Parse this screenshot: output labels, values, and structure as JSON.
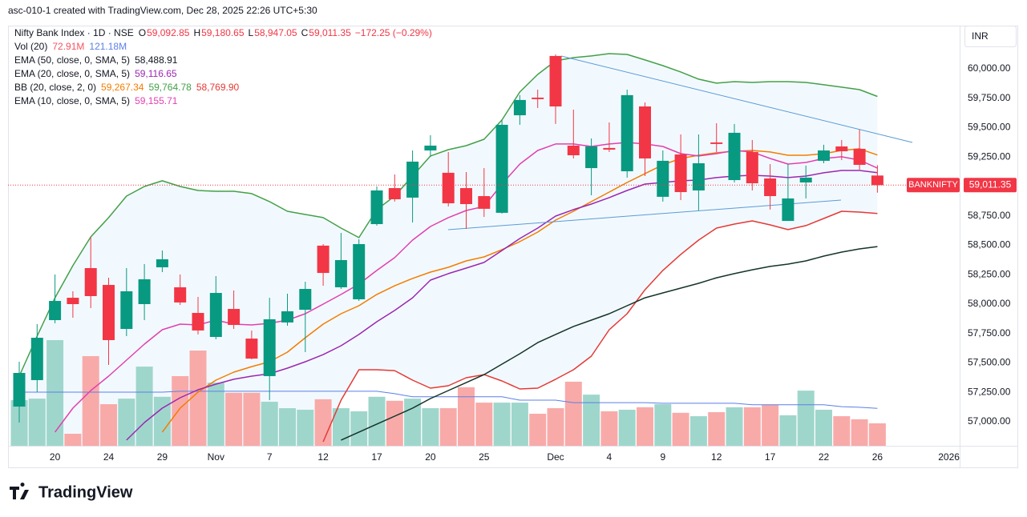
{
  "caption": "asc-010-1 created with TradingView.com, Dec 28, 2025 22:26 UTC+5:30",
  "currency": "INR",
  "brand": "TradingView",
  "chart_data": {
    "type": "candlestick",
    "title": "Nifty Bank Index · 1D · NSE",
    "ohlc_labels": [
      {
        "key": "O",
        "label": "59,092.85"
      },
      {
        "key": "H",
        "label": "59,180.65"
      },
      {
        "key": "L",
        "label": "58,947.05"
      },
      {
        "key": "C",
        "label": "59,011.35"
      }
    ],
    "change_label": "−172.25 (−0.29%)",
    "symbol_tag": "BANKNIFTY",
    "up_color": "#089981",
    "down_color": "#f23645",
    "categories": [
      null,
      null,
      "20",
      null,
      null,
      "24",
      null,
      null,
      "29",
      null,
      null,
      "Nov",
      null,
      null,
      "7",
      null,
      null,
      "12",
      null,
      null,
      "17",
      null,
      null,
      "20",
      null,
      null,
      "25",
      null,
      null,
      null,
      "Dec",
      null,
      null,
      "4",
      null,
      null,
      "9",
      null,
      null,
      "12",
      null,
      null,
      "17",
      null,
      null,
      "22",
      null,
      null,
      "26",
      null,
      null,
      null,
      "2026"
    ],
    "open": [
      57129,
      57354,
      57864,
      58054,
      58306,
      58163,
      57789,
      58000,
      58313,
      58143,
      57925,
      57721,
      57959,
      57707,
      57388,
      57844,
      57952,
      58497,
      58143,
      58041,
      58680,
      58986,
      58905,
      59306,
      59116,
      58986,
      58918,
      58776,
      59605,
      59755,
      60109,
      59347,
      59156,
      59327,
      59129,
      59680,
      58912,
      59272,
      58966,
      59374,
      59054,
      59293,
      59068,
      58707,
      59034,
      59218,
      59340,
      59320,
      59092.85,
      null,
      null,
      null,
      null
    ],
    "high": [
      57510,
      57830,
      58252,
      58109,
      58571,
      58224,
      58306,
      58340,
      58456,
      58252,
      58061,
      58238,
      58116,
      57776,
      58054,
      58088,
      58190,
      58510,
      58605,
      58551,
      59000,
      59102,
      59306,
      59435,
      59293,
      59122,
      59156,
      59565,
      59776,
      59823,
      60122,
      59653,
      59408,
      59544,
      59823,
      59714,
      59306,
      59442,
      59442,
      59537,
      59531,
      59395,
      59190,
      59190,
      59177,
      59354,
      59395,
      59483,
      59180.65,
      null,
      null,
      null,
      null
    ],
    "low": [
      56993,
      57252,
      57837,
      57884,
      57966,
      57483,
      57728,
      57864,
      58272,
      57993,
      57742,
      57701,
      57789,
      57531,
      57184,
      57816,
      57592,
      58156,
      58129,
      58027,
      58667,
      58871,
      58694,
      59252,
      58830,
      58639,
      58741,
      58769,
      59524,
      59667,
      59531,
      59238,
      58925,
      59293,
      59075,
      59088,
      58871,
      58884,
      58796,
      59293,
      59034,
      58966,
      58803,
      58707,
      58898,
      59197,
      59224,
      59143,
      58947.05,
      null,
      null,
      null,
      null
    ],
    "close": [
      57415,
      57714,
      58027,
      58000,
      58068,
      57694,
      58109,
      58211,
      58381,
      58014,
      57776,
      58095,
      57823,
      57537,
      57871,
      57939,
      58129,
      58265,
      58374,
      58510,
      58966,
      58891,
      59211,
      59347,
      58857,
      58850,
      58810,
      59524,
      59735,
      59742,
      59680,
      59265,
      59340,
      59313,
      59776,
      59238,
      59218,
      58952,
      59197,
      59361,
      59456,
      59027,
      58918,
      58898,
      59075,
      59306,
      59299,
      59183.6,
      59011.35,
      null,
      null,
      null,
      null
    ],
    "volume": {
      "name": "Vol (20)",
      "up_color": "#9fd6cc",
      "down_color": "#f8aaa9",
      "ma_color": "#5b7fe8",
      "legend_values": [
        "72.91M",
        "121.18M"
      ],
      "values": [
        148,
        153,
        343,
        39,
        291,
        135,
        153,
        257,
        159,
        226,
        309,
        205,
        172,
        172,
        143,
        122,
        117,
        151,
        122,
        112,
        159,
        146,
        153,
        122,
        122,
        190,
        140,
        140,
        140,
        104,
        122,
        208,
        166,
        112,
        117,
        125,
        135,
        107,
        96,
        109,
        125,
        125,
        133,
        99,
        179,
        117,
        96,
        86,
        72.91,
        null,
        null,
        null,
        null
      ],
      "ma_values": [
        174,
        174,
        174,
        174,
        174,
        174,
        174,
        174,
        174,
        177,
        177,
        177,
        177,
        177,
        177,
        177,
        177,
        177,
        177,
        177,
        177,
        169,
        159,
        159,
        159,
        159,
        159,
        159,
        148,
        148,
        148,
        140,
        140,
        140,
        140,
        140,
        138,
        138,
        138,
        138,
        138,
        133,
        133,
        133,
        133,
        133,
        127,
        125,
        121.18,
        null,
        null,
        null,
        null
      ]
    },
    "overlays": [
      {
        "name": "EMA (50, close, 0, SMA, 5)",
        "color": "#14332a",
        "legend_values": [
          "58,488.91"
        ],
        "values": [
          null,
          null,
          null,
          null,
          null,
          null,
          null,
          null,
          null,
          null,
          null,
          null,
          null,
          null,
          null,
          null,
          null,
          null,
          56844,
          56912,
          56980,
          57048,
          57116,
          57197,
          57265,
          57333,
          57401,
          57490,
          57578,
          57673,
          57742,
          57810,
          57864,
          57918,
          57986,
          58054,
          58095,
          58136,
          58177,
          58224,
          58259,
          58292,
          58320,
          58340,
          58367,
          58408,
          58442,
          58469,
          58488.91,
          null,
          null,
          null,
          null
        ]
      },
      {
        "name": "EMA (20, close, 0, SMA, 5)",
        "color": "#9c27b0",
        "legend_values": [
          "59,116.65"
        ],
        "values": [
          null,
          null,
          null,
          null,
          null,
          null,
          56844,
          56993,
          57116,
          57204,
          57272,
          57320,
          57361,
          57388,
          57408,
          57456,
          57510,
          57571,
          57646,
          57742,
          57850,
          57946,
          58054,
          58204,
          58259,
          58306,
          58354,
          58456,
          58558,
          58646,
          58748,
          58803,
          58850,
          58905,
          58966,
          59020,
          59034,
          59048,
          59054,
          59075,
          59088,
          59095,
          59088,
          59075,
          59088,
          59116,
          59136,
          59136,
          59116.65,
          null,
          null,
          null,
          null
        ]
      },
      {
        "name": "EMA (10, close, 0, SMA, 5)",
        "color": "#e33fae",
        "legend_values": [
          "59,155.71"
        ],
        "values": [
          null,
          null,
          56912,
          57116,
          57265,
          57388,
          57524,
          57660,
          57782,
          57830,
          57823,
          57864,
          57830,
          57823,
          57837,
          57864,
          57918,
          58000,
          58082,
          58170,
          58286,
          58395,
          58544,
          58660,
          58735,
          58796,
          58830,
          59020,
          59190,
          59306,
          59361,
          59361,
          59340,
          59361,
          59374,
          59361,
          59340,
          59279,
          59259,
          59279,
          59306,
          59293,
          59238,
          59190,
          59204,
          59238,
          59252,
          59224,
          59155.71,
          null,
          null,
          null,
          null
        ]
      }
    ],
    "bb": {
      "name": "BB (20, close, 2, 0)",
      "fill": "rgba(33,150,243,0.06)",
      "legend_values": [
        "59,267.34",
        "59,764.78",
        "58,769.90"
      ],
      "basis": {
        "color": "#f57c00",
        "values": [
          null,
          null,
          null,
          null,
          null,
          null,
          null,
          null,
          56912,
          57116,
          57252,
          57354,
          57422,
          57469,
          57510,
          57592,
          57714,
          57830,
          57918,
          57986,
          58082,
          58156,
          58218,
          58272,
          58313,
          58367,
          58401,
          58463,
          58531,
          58612,
          58714,
          58789,
          58871,
          58952,
          59034,
          59109,
          59184,
          59238,
          59265,
          59286,
          59299,
          59306,
          59293,
          59265,
          59265,
          59279,
          59306,
          59320,
          59267.34,
          null,
          null,
          null,
          null
        ]
      },
      "upper": {
        "color": "#43a047",
        "values": [
          57388,
          57728,
          58054,
          58327,
          58571,
          58735,
          58918,
          59000,
          59048,
          59000,
          58966,
          58959,
          58959,
          58939,
          58871,
          58789,
          58762,
          58735,
          58646,
          58565,
          58803,
          58918,
          59088,
          59259,
          59313,
          59347,
          59401,
          59565,
          59803,
          59952,
          60068,
          60095,
          60109,
          60129,
          60122,
          60075,
          60027,
          59973,
          59912,
          59878,
          59891,
          59884,
          59891,
          59891,
          59884,
          59864,
          59844,
          59823,
          59764.78,
          null,
          null,
          null,
          null
        ]
      },
      "lower": {
        "color": "#e53935",
        "values": [
          null,
          null,
          null,
          null,
          null,
          null,
          null,
          null,
          null,
          null,
          null,
          null,
          null,
          null,
          null,
          null,
          null,
          56830,
          57184,
          57442,
          57442,
          57435,
          57354,
          57286,
          57306,
          57374,
          57401,
          57347,
          57279,
          57286,
          57361,
          57442,
          57558,
          57782,
          57918,
          58122,
          58286,
          58422,
          58544,
          58646,
          58680,
          58707,
          58673,
          58633,
          58667,
          58728,
          58789,
          58782,
          58769.9,
          null,
          null,
          null,
          null
        ]
      }
    },
    "ylim": [
      56796,
      60367
    ],
    "yticks": [
      {
        "value": 57000,
        "label": "57,000.00"
      },
      {
        "value": 57250,
        "label": "57,250.00"
      },
      {
        "value": 57500,
        "label": "57,500.00"
      },
      {
        "value": 57750,
        "label": "57,750.00"
      },
      {
        "value": 58000,
        "label": "58,000.00"
      },
      {
        "value": 58250,
        "label": "58,250.00"
      },
      {
        "value": 58500,
        "label": "58,500.00"
      },
      {
        "value": 58750,
        "label": "58,750.00"
      },
      {
        "value": 59000,
        "label": "59,000.00"
      },
      {
        "value": 59250,
        "label": "59,250.00"
      },
      {
        "value": 59500,
        "label": "59,500.00"
      },
      {
        "value": 59750,
        "label": "59,750.00"
      },
      {
        "value": 60000,
        "label": "60,000.00"
      }
    ],
    "grid": false
  }
}
